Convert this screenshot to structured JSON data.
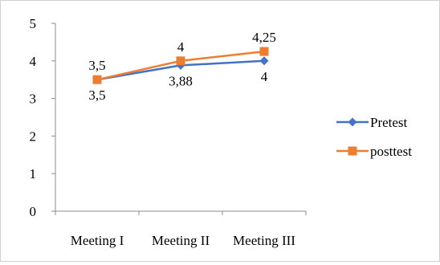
{
  "chart_data": {
    "type": "line",
    "title": "",
    "xlabel": "",
    "ylabel": "",
    "categories": [
      "Meeting I",
      "Meeting II",
      "Meeting III"
    ],
    "ylim": [
      0,
      5
    ],
    "yticks": [
      "0",
      "1",
      "2",
      "3",
      "4",
      "5"
    ],
    "grid": false,
    "legend_position": "right",
    "series": [
      {
        "name": "Pretest",
        "values": [
          3.5,
          3.88,
          4
        ],
        "labels": [
          "3,5",
          "3,88",
          "4"
        ],
        "color": "#4472c4",
        "marker": "diamond",
        "label_position": "below"
      },
      {
        "name": "posttest",
        "values": [
          3.5,
          4,
          4.25
        ],
        "labels": [
          "3,5",
          "4",
          "4,25"
        ],
        "color": "#ed7d31",
        "marker": "square",
        "label_position": "above"
      }
    ]
  }
}
